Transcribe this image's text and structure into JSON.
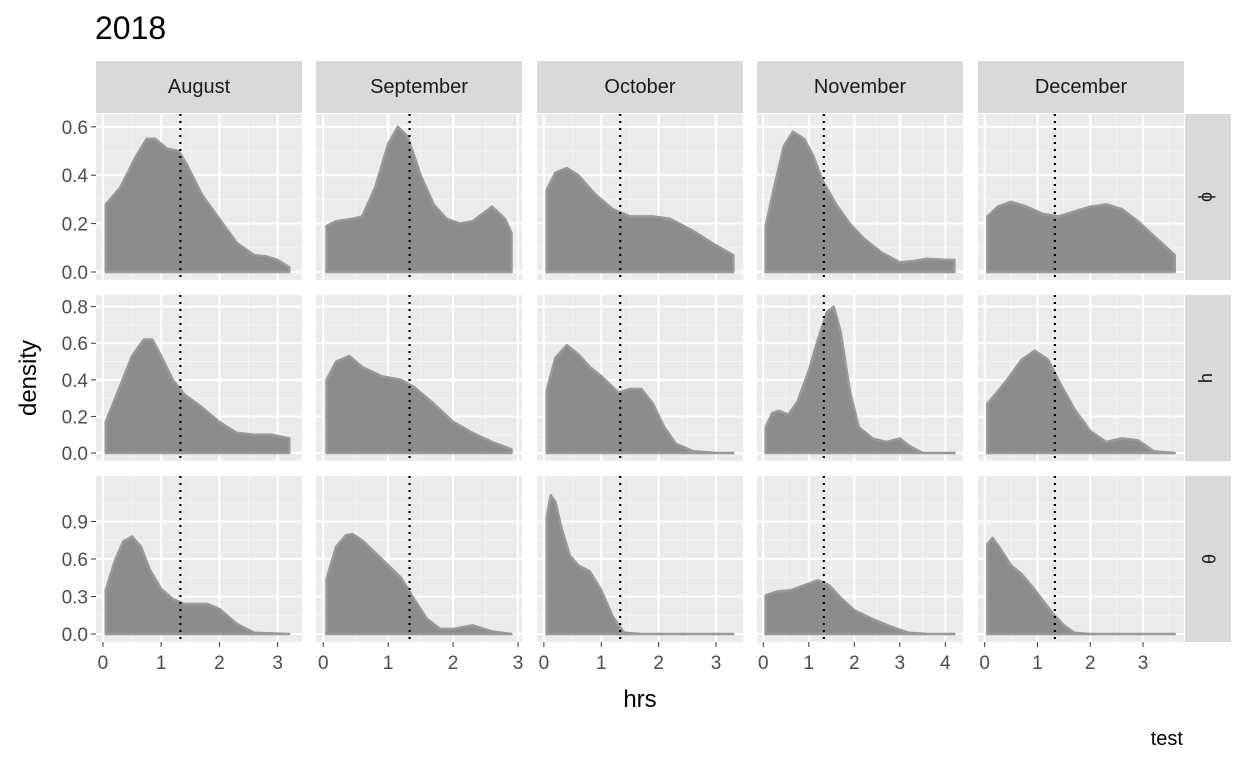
{
  "chart_data": {
    "type": "area",
    "title": "2018",
    "xlabel": "hrs",
    "ylabel": "density",
    "caption": "test",
    "reference_line_x": 1.33,
    "columns": [
      "August",
      "September",
      "October",
      "November",
      "December"
    ],
    "rows": [
      "ɸ",
      "ɥ",
      "θ"
    ],
    "row_ylim": [
      [
        0,
        0.62
      ],
      [
        0,
        0.82
      ],
      [
        0,
        1.2
      ]
    ],
    "row_yticks": [
      [
        0.0,
        0.2,
        0.4,
        0.6
      ],
      [
        0.0,
        0.2,
        0.4,
        0.6,
        0.8
      ],
      [
        0.0,
        0.3,
        0.6,
        0.9
      ]
    ],
    "col_xlim": [
      [
        -0.05,
        3.35
      ],
      [
        -0.05,
        3.0
      ],
      [
        -0.05,
        3.4
      ],
      [
        -0.05,
        4.3
      ],
      [
        -0.05,
        3.7
      ]
    ],
    "col_xticks": [
      [
        0,
        1,
        2,
        3
      ],
      [
        0,
        1,
        2,
        3
      ],
      [
        0,
        1,
        2,
        3
      ],
      [
        0,
        1,
        2,
        3,
        4
      ],
      [
        0,
        1,
        2,
        3
      ]
    ],
    "fill": "#8c8c8c",
    "line_color": "#999999",
    "panel_bg": "#ebebeb",
    "strip_bg": "#d9d9d9",
    "series": [
      {
        "row": 0,
        "col": 0,
        "x": [
          0.05,
          0.3,
          0.55,
          0.75,
          0.9,
          1.1,
          1.3,
          1.45,
          1.7,
          2.0,
          2.3,
          2.6,
          2.8,
          3.0,
          3.2
        ],
        "y": [
          0.28,
          0.35,
          0.47,
          0.55,
          0.55,
          0.51,
          0.5,
          0.44,
          0.32,
          0.22,
          0.12,
          0.07,
          0.065,
          0.05,
          0.02
        ]
      },
      {
        "row": 0,
        "col": 1,
        "x": [
          0.05,
          0.2,
          0.45,
          0.6,
          0.8,
          1.0,
          1.15,
          1.3,
          1.5,
          1.7,
          1.9,
          2.1,
          2.3,
          2.6,
          2.8,
          2.9
        ],
        "y": [
          0.19,
          0.21,
          0.22,
          0.23,
          0.35,
          0.53,
          0.6,
          0.56,
          0.4,
          0.28,
          0.22,
          0.2,
          0.21,
          0.27,
          0.22,
          0.16
        ]
      },
      {
        "row": 0,
        "col": 2,
        "x": [
          0.05,
          0.2,
          0.4,
          0.6,
          0.9,
          1.2,
          1.5,
          1.9,
          2.2,
          2.6,
          3.0,
          3.3
        ],
        "y": [
          0.34,
          0.41,
          0.43,
          0.4,
          0.32,
          0.26,
          0.23,
          0.23,
          0.22,
          0.17,
          0.11,
          0.07
        ]
      },
      {
        "row": 0,
        "col": 3,
        "x": [
          0.05,
          0.25,
          0.45,
          0.65,
          0.9,
          1.1,
          1.3,
          1.6,
          1.9,
          2.2,
          2.6,
          3.0,
          3.3,
          3.6,
          4.0,
          4.2
        ],
        "y": [
          0.19,
          0.36,
          0.52,
          0.58,
          0.55,
          0.48,
          0.38,
          0.28,
          0.2,
          0.14,
          0.08,
          0.04,
          0.045,
          0.055,
          0.05,
          0.05
        ]
      },
      {
        "row": 0,
        "col": 4,
        "x": [
          0.05,
          0.25,
          0.5,
          0.8,
          1.1,
          1.4,
          1.7,
          2.0,
          2.3,
          2.6,
          2.9,
          3.2,
          3.5,
          3.6
        ],
        "y": [
          0.23,
          0.27,
          0.29,
          0.27,
          0.24,
          0.23,
          0.25,
          0.27,
          0.28,
          0.26,
          0.21,
          0.15,
          0.09,
          0.07
        ]
      },
      {
        "row": 1,
        "col": 0,
        "x": [
          0.05,
          0.25,
          0.5,
          0.7,
          0.85,
          1.0,
          1.2,
          1.4,
          1.7,
          2.0,
          2.3,
          2.6,
          2.9,
          3.2
        ],
        "y": [
          0.17,
          0.33,
          0.53,
          0.62,
          0.62,
          0.53,
          0.4,
          0.32,
          0.25,
          0.17,
          0.11,
          0.1,
          0.1,
          0.08
        ]
      },
      {
        "row": 1,
        "col": 1,
        "x": [
          0.05,
          0.2,
          0.4,
          0.6,
          0.9,
          1.2,
          1.4,
          1.7,
          2.0,
          2.3,
          2.6,
          2.9
        ],
        "y": [
          0.4,
          0.5,
          0.53,
          0.47,
          0.42,
          0.4,
          0.36,
          0.27,
          0.17,
          0.11,
          0.06,
          0.02
        ]
      },
      {
        "row": 1,
        "col": 2,
        "x": [
          0.05,
          0.2,
          0.4,
          0.6,
          0.8,
          1.0,
          1.3,
          1.5,
          1.7,
          1.9,
          2.1,
          2.3,
          2.6,
          3.0,
          3.3
        ],
        "y": [
          0.34,
          0.52,
          0.59,
          0.54,
          0.47,
          0.42,
          0.33,
          0.35,
          0.35,
          0.27,
          0.14,
          0.05,
          0.01,
          0.0,
          0.0
        ]
      },
      {
        "row": 1,
        "col": 3,
        "x": [
          0.05,
          0.2,
          0.35,
          0.55,
          0.75,
          1.0,
          1.2,
          1.4,
          1.55,
          1.7,
          1.9,
          2.1,
          2.4,
          2.7,
          3.0,
          3.2,
          3.5,
          4.0,
          4.2
        ],
        "y": [
          0.14,
          0.22,
          0.23,
          0.21,
          0.28,
          0.45,
          0.62,
          0.77,
          0.8,
          0.66,
          0.34,
          0.14,
          0.08,
          0.06,
          0.08,
          0.04,
          0.0,
          0.0,
          0.0
        ]
      },
      {
        "row": 1,
        "col": 4,
        "x": [
          0.05,
          0.2,
          0.45,
          0.7,
          0.95,
          1.2,
          1.45,
          1.7,
          2.0,
          2.3,
          2.6,
          2.9,
          3.2,
          3.6
        ],
        "y": [
          0.27,
          0.32,
          0.41,
          0.51,
          0.56,
          0.51,
          0.37,
          0.24,
          0.12,
          0.06,
          0.08,
          0.07,
          0.01,
          0.0
        ]
      },
      {
        "row": 2,
        "col": 0,
        "x": [
          0.05,
          0.2,
          0.35,
          0.5,
          0.65,
          0.8,
          1.0,
          1.2,
          1.4,
          1.6,
          1.8,
          2.0,
          2.3,
          2.6,
          3.2
        ],
        "y": [
          0.35,
          0.58,
          0.74,
          0.78,
          0.7,
          0.52,
          0.36,
          0.28,
          0.24,
          0.24,
          0.24,
          0.2,
          0.08,
          0.01,
          0.0
        ]
      },
      {
        "row": 2,
        "col": 1,
        "x": [
          0.05,
          0.2,
          0.35,
          0.45,
          0.6,
          0.8,
          1.0,
          1.2,
          1.4,
          1.6,
          1.8,
          2.0,
          2.3,
          2.6,
          2.9
        ],
        "y": [
          0.44,
          0.7,
          0.79,
          0.8,
          0.75,
          0.65,
          0.55,
          0.45,
          0.28,
          0.12,
          0.04,
          0.04,
          0.07,
          0.02,
          0.0
        ]
      },
      {
        "row": 2,
        "col": 2,
        "x": [
          0.05,
          0.12,
          0.2,
          0.3,
          0.45,
          0.6,
          0.8,
          1.0,
          1.2,
          1.4,
          1.7,
          2.2,
          3.3
        ],
        "y": [
          0.94,
          1.11,
          1.06,
          0.86,
          0.63,
          0.55,
          0.5,
          0.35,
          0.14,
          0.01,
          0.0,
          0.0,
          0.0
        ]
      },
      {
        "row": 2,
        "col": 3,
        "x": [
          0.05,
          0.3,
          0.6,
          0.9,
          1.2,
          1.45,
          1.7,
          2.0,
          2.4,
          2.8,
          3.2,
          3.6,
          4.2
        ],
        "y": [
          0.31,
          0.34,
          0.35,
          0.39,
          0.43,
          0.39,
          0.29,
          0.19,
          0.12,
          0.06,
          0.01,
          0.0,
          0.0
        ]
      },
      {
        "row": 2,
        "col": 4,
        "x": [
          0.05,
          0.15,
          0.3,
          0.5,
          0.7,
          0.9,
          1.1,
          1.3,
          1.5,
          1.7,
          2.0,
          2.4,
          3.6
        ],
        "y": [
          0.72,
          0.77,
          0.68,
          0.55,
          0.48,
          0.38,
          0.27,
          0.16,
          0.07,
          0.01,
          0.0,
          0.0,
          0.0
        ]
      }
    ]
  }
}
